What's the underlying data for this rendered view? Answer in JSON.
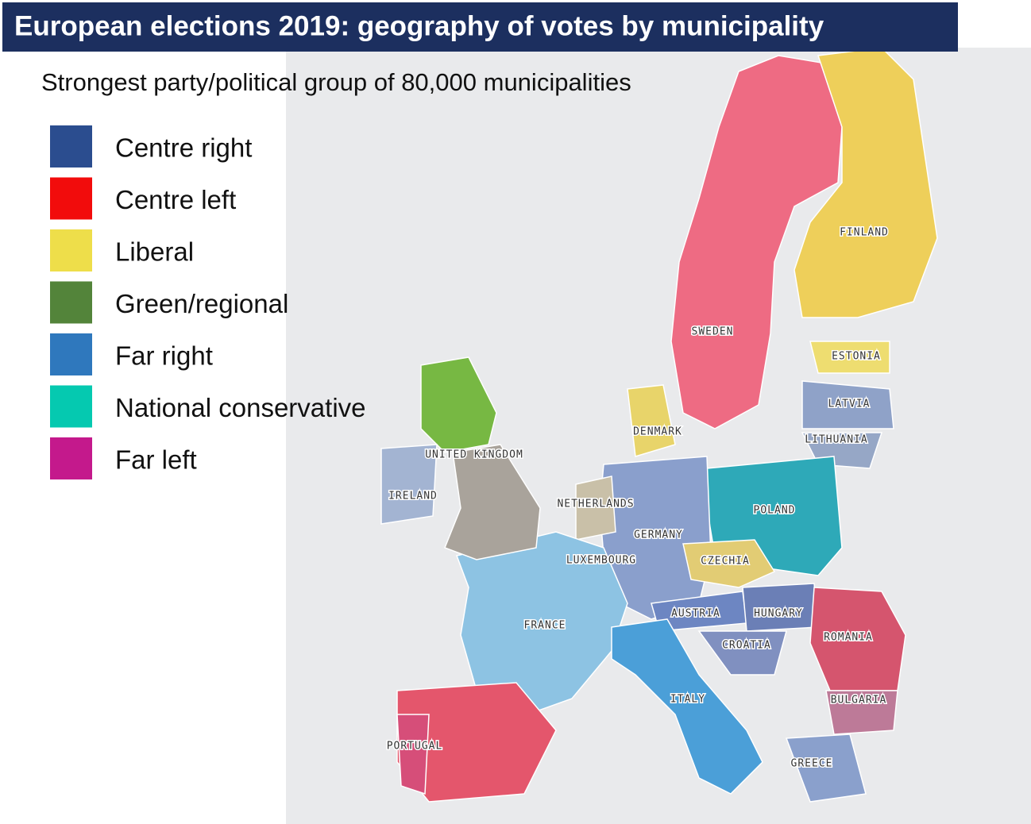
{
  "header": {
    "title": "European elections 2019: geography of votes by municipality"
  },
  "subtitle": "Strongest party/political group of 80,000 municipalities",
  "legend": [
    {
      "label": "Centre right",
      "color": "#2b4d8f"
    },
    {
      "label": "Centre left",
      "color": "#f20c0c"
    },
    {
      "label": "Liberal",
      "color": "#eede4a"
    },
    {
      "label": "Green/regional",
      "color": "#53843a"
    },
    {
      "label": "Far right",
      "color": "#2f78bd"
    },
    {
      "label": "National conservative",
      "color": "#05c9b0"
    },
    {
      "label": "Far left",
      "color": "#c4198c"
    }
  ],
  "countries": [
    "UNITED KINGDOM",
    "IRELAND",
    "NETHERLANDS",
    "DENMARK",
    "SWEDEN",
    "FINLAND",
    "ESTONIA",
    "LATVIA",
    "LITHUANIA",
    "POLAND",
    "GERMANY",
    "LUXEMBOURG",
    "CZECHIA",
    "AUSTRIA",
    "HUNGARY",
    "ROMANIA",
    "CROATIA",
    "FRANCE",
    "ITALY",
    "BULGARIA",
    "PORTUGAL",
    "GREECE"
  ]
}
